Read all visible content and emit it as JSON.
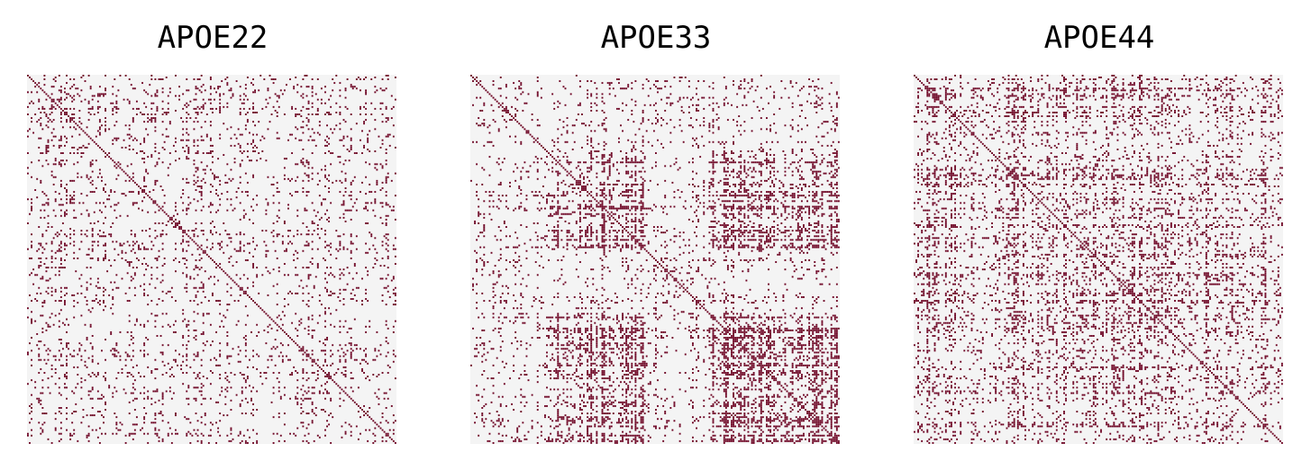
{
  "colors": {
    "background": "#f4f4f4",
    "edge": "#6b0020"
  },
  "chart_data": [
    {
      "type": "heatmap",
      "title": "APOE22",
      "n": 200,
      "density": 0.16,
      "block_density": 0.22,
      "blocks": [
        [
          10,
          40,
          10,
          40
        ],
        [
          150,
          190,
          150,
          190
        ]
      ],
      "diagonal": true,
      "seed": 22
    },
    {
      "type": "heatmap",
      "title": "APOE33",
      "n": 200,
      "density": 0.14,
      "block_density": 0.62,
      "blocks": [
        [
          40,
          95,
          40,
          95
        ],
        [
          40,
          95,
          130,
          200
        ],
        [
          130,
          200,
          40,
          95
        ],
        [
          130,
          200,
          130,
          200
        ]
      ],
      "diagonal": true,
      "seed": 33
    },
    {
      "type": "heatmap",
      "title": "APOE44",
      "n": 200,
      "density": 0.3,
      "block_density": 0.34,
      "blocks": [
        [
          5,
          60,
          5,
          60
        ],
        [
          90,
          150,
          90,
          150
        ]
      ],
      "diagonal": true,
      "seed": 44
    }
  ]
}
